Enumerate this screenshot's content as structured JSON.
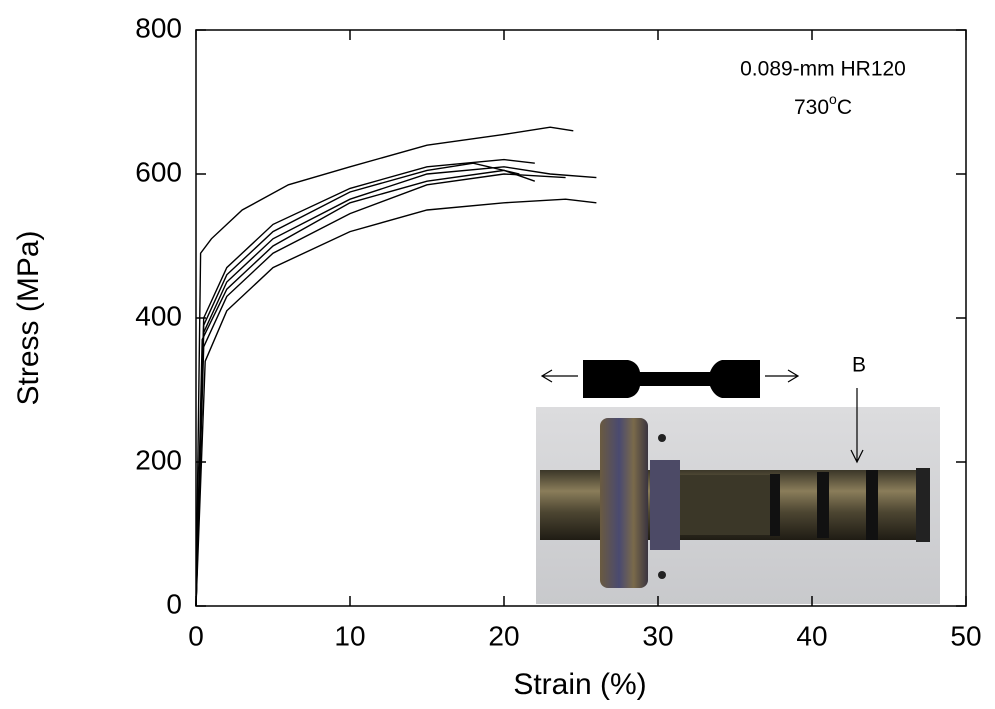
{
  "chart_data": {
    "type": "line",
    "xlabel": "Strain (%)",
    "ylabel": "Stress (MPa)",
    "xlim": [
      0,
      50
    ],
    "xticks": [
      0,
      10,
      20,
      30,
      40,
      50
    ],
    "ylim": [
      0,
      800
    ],
    "yticks": [
      0,
      200,
      400,
      600,
      800
    ],
    "annotation": {
      "line1": "0.089-mm HR120",
      "line2": [
        "730",
        "o",
        "C"
      ]
    },
    "inset_label": "B",
    "series": [
      {
        "color": "#000000",
        "x": [
          0,
          0.3,
          1,
          3,
          6,
          10,
          15,
          20,
          23,
          24.5
        ],
        "values": [
          0,
          490,
          510,
          550,
          585,
          610,
          640,
          655,
          665,
          660
        ]
      },
      {
        "color": "#000000",
        "x": [
          0,
          0.5,
          2,
          5,
          10,
          15,
          20,
          22
        ],
        "values": [
          0,
          400,
          470,
          530,
          580,
          610,
          620,
          615
        ]
      },
      {
        "color": "#000000",
        "x": [
          0,
          0.5,
          2,
          5,
          10,
          15,
          20,
          23,
          26
        ],
        "values": [
          0,
          380,
          450,
          510,
          565,
          600,
          610,
          600,
          595
        ]
      },
      {
        "color": "#000000",
        "x": [
          0,
          0.5,
          2,
          5,
          10,
          15,
          20,
          24
        ],
        "values": [
          0,
          360,
          430,
          490,
          545,
          585,
          600,
          595
        ]
      },
      {
        "color": "#000000",
        "x": [
          0,
          0.6,
          2,
          5,
          10,
          15,
          20,
          24,
          26
        ],
        "values": [
          0,
          340,
          410,
          470,
          520,
          550,
          560,
          565,
          560
        ]
      },
      {
        "color": "#000000",
        "x": [
          0,
          0.4,
          2,
          5,
          10,
          15,
          20,
          22
        ],
        "values": [
          0,
          370,
          440,
          500,
          560,
          590,
          605,
          590
        ]
      },
      {
        "color": "#000000",
        "x": [
          0,
          0.5,
          2,
          5,
          10,
          15,
          18,
          21
        ],
        "values": [
          0,
          390,
          460,
          520,
          575,
          605,
          615,
          600
        ]
      }
    ]
  }
}
